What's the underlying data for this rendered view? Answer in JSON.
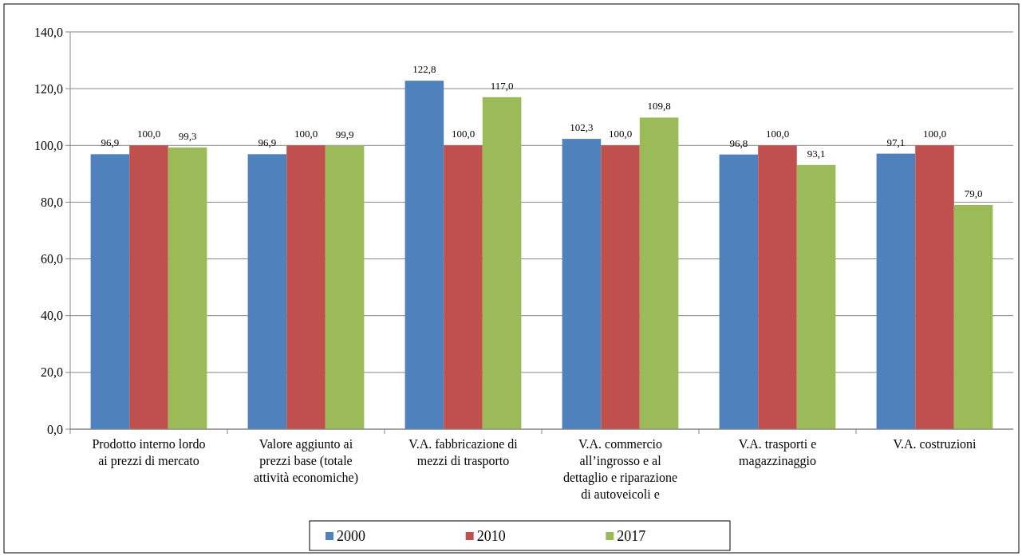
{
  "chart_data": {
    "type": "bar",
    "categories": [
      "Prodotto interno lordo ai prezzi di mercato",
      "Valore aggiunto ai prezzi base (totale attività economiche)",
      "V.A. fabbricazione di mezzi di trasporto",
      "V.A. commercio all’ingrosso e al dettaglio e riparazione di autoveicoli e",
      "V.A. trasporti e magazzinaggio",
      "V.A. costruzioni"
    ],
    "series": [
      {
        "name": "2000",
        "color": "#4f81bd",
        "values": [
          96.9,
          96.9,
          122.8,
          102.3,
          96.8,
          97.1
        ],
        "value_labels": [
          "96,9",
          "96,9",
          "122,8",
          "102,3",
          "96,8",
          "97,1"
        ]
      },
      {
        "name": "2010",
        "color": "#c0504d",
        "values": [
          100.0,
          100.0,
          100.0,
          100.0,
          100.0,
          100.0
        ],
        "value_labels": [
          "100,0",
          "100,0",
          "100,0",
          "100,0",
          "100,0",
          "100,0"
        ]
      },
      {
        "name": "2017",
        "color": "#9bbb59",
        "values": [
          99.3,
          99.9,
          117.0,
          109.8,
          93.1,
          79.0
        ],
        "value_labels": [
          "99,3",
          "99,9",
          "117,0",
          "109,8",
          "93,1",
          "79,0"
        ]
      }
    ],
    "ylim": [
      0,
      140
    ],
    "yticks": [
      {
        "value": 0,
        "label": "0,0"
      },
      {
        "value": 20,
        "label": "20,0"
      },
      {
        "value": 40,
        "label": "40,0"
      },
      {
        "value": 60,
        "label": "60,0"
      },
      {
        "value": 80,
        "label": "80,0"
      },
      {
        "value": 100,
        "label": "100,0"
      },
      {
        "value": 120,
        "label": "120,0"
      },
      {
        "value": 140,
        "label": "140,0"
      }
    ],
    "grid": "y",
    "legend": "bottom"
  }
}
